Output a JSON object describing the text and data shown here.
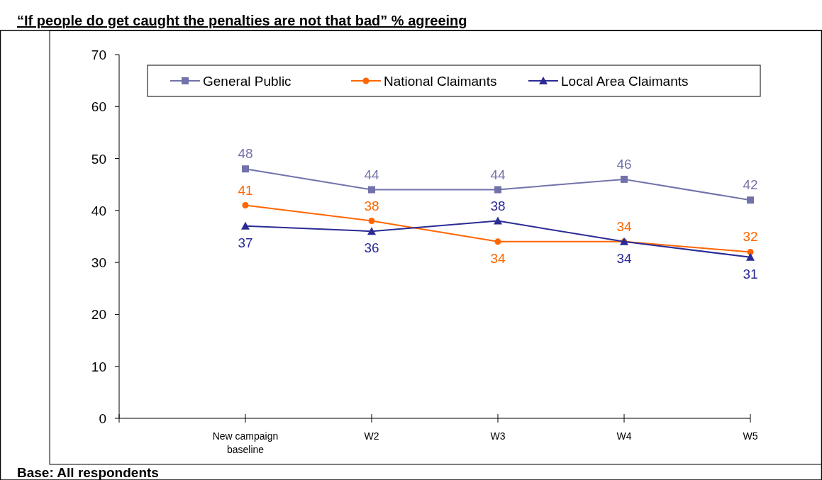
{
  "chart_data": {
    "type": "line",
    "title": "“If people do get caught the penalties are not that bad” % agreeing",
    "categories": [
      "New campaign baseline",
      "W2",
      "W3",
      "W4",
      "W5"
    ],
    "series": [
      {
        "name": "General Public",
        "color": "#7272aa",
        "values": [
          48,
          44,
          44,
          46,
          42
        ],
        "marker": "square"
      },
      {
        "name": "National Claimants",
        "color": "#ff6600",
        "values": [
          41,
          38,
          34,
          34,
          32
        ],
        "marker": "circle"
      },
      {
        "name": "Local Area Claimants",
        "color": "#2b2b96",
        "values": [
          37,
          36,
          38,
          34,
          31
        ],
        "marker": "triangle"
      }
    ],
    "ylim": [
      0,
      70
    ],
    "yticks": [
      0,
      10,
      20,
      30,
      40,
      50,
      60,
      70
    ],
    "legend": "top",
    "data_labels": true,
    "grid": false,
    "annotations": [
      "Base:  All respondents"
    ]
  }
}
